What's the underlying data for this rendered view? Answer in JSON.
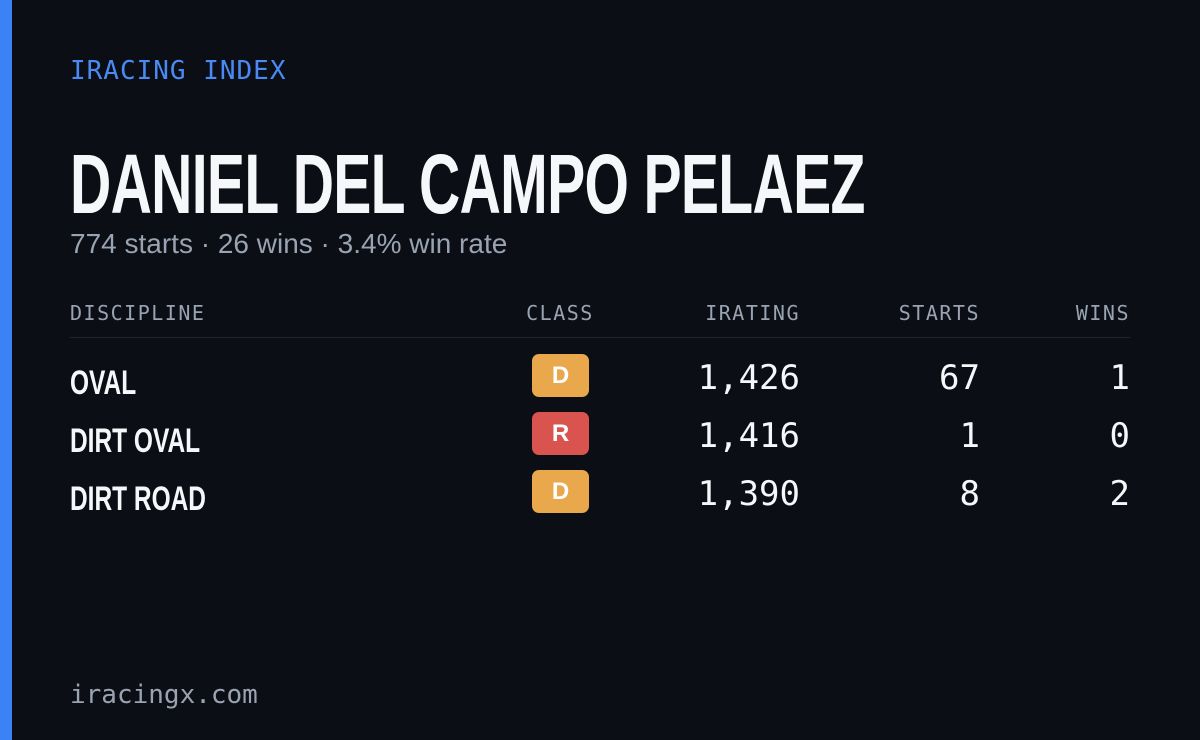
{
  "header": {
    "brand": "IRACING INDEX",
    "name": "DANIEL DEL CAMPO PELAEZ",
    "summary": "774 starts · 26 wins · 3.4% win rate"
  },
  "table": {
    "columns": [
      "DISCIPLINE",
      "CLASS",
      "IRATING",
      "STARTS",
      "WINS"
    ],
    "rows": [
      {
        "discipline": "OVAL",
        "class": "D",
        "class_color": "#e9a84c",
        "irating": "1,426",
        "starts": "67",
        "wins": "1"
      },
      {
        "discipline": "DIRT OVAL",
        "class": "R",
        "class_color": "#d9534f",
        "irating": "1,416",
        "starts": "1",
        "wins": "0"
      },
      {
        "discipline": "DIRT ROAD",
        "class": "D",
        "class_color": "#e9a84c",
        "irating": "1,390",
        "starts": "8",
        "wins": "2"
      }
    ]
  },
  "footer": {
    "site": "iracingx.com"
  }
}
